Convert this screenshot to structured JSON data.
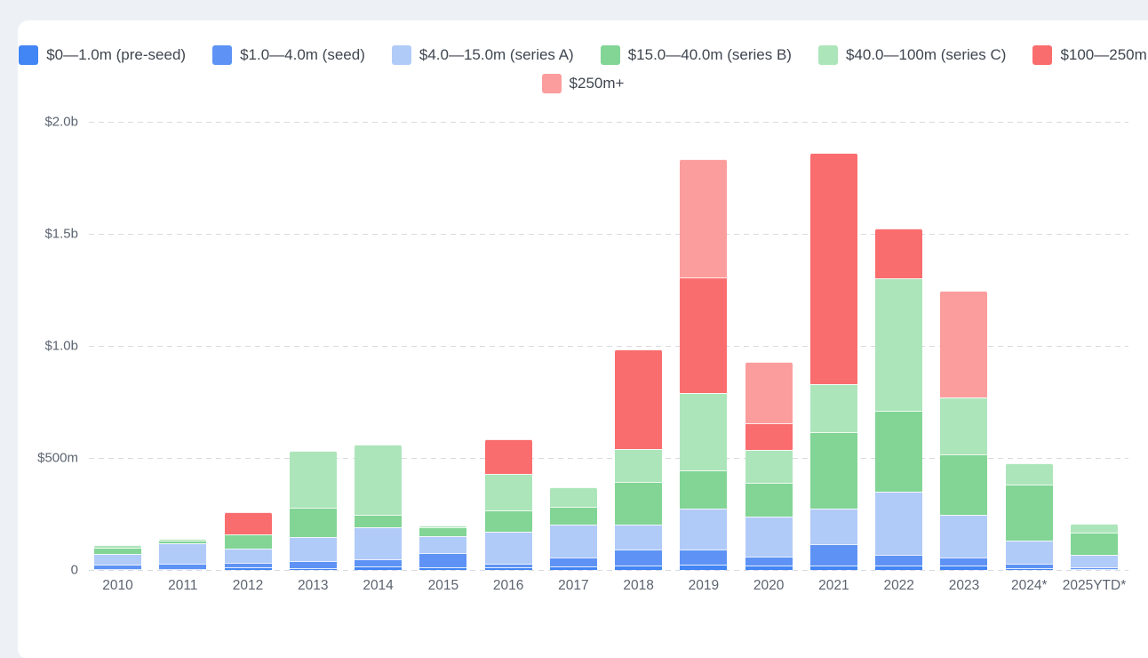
{
  "chart_data": {
    "type": "stacked-bar",
    "title": "",
    "unit": "USD millions",
    "categories": [
      "2010",
      "2011",
      "2012",
      "2013",
      "2014",
      "2015",
      "2016",
      "2017",
      "2018",
      "2019",
      "2020",
      "2021",
      "2022",
      "2023",
      "2024*",
      "2025YTD*"
    ],
    "series": [
      {
        "name": "$0—1.0m (pre-seed)",
        "color": "#4285f4",
        "values": [
          5,
          6,
          12,
          8,
          16,
          12,
          10,
          16,
          20,
          24,
          20,
          20,
          20,
          20,
          8,
          5
        ]
      },
      {
        "name": "$1.0—4.0m (seed)",
        "color": "#5e93f5",
        "values": [
          20,
          20,
          20,
          32,
          31,
          63,
          16,
          40,
          71,
          67,
          40,
          95,
          48,
          36,
          20,
          8
        ]
      },
      {
        "name": "$4.0—15.0m (series A)",
        "color": "#b1cbf8",
        "values": [
          45,
          95,
          63,
          106,
          142,
          75,
          143,
          147,
          111,
          183,
          179,
          159,
          282,
          190,
          102,
          55
        ]
      },
      {
        "name": "$15.0—40.0m (series B)",
        "color": "#82d595",
        "values": [
          30,
          12,
          62,
          130,
          59,
          42,
          95,
          79,
          190,
          171,
          151,
          341,
          361,
          270,
          252,
          98
        ]
      },
      {
        "name": "$40.0—100m (series C)",
        "color": "#ade5ba",
        "values": [
          10,
          5,
          0,
          256,
          311,
          5,
          163,
          87,
          147,
          345,
          147,
          214,
          591,
          254,
          95,
          39
        ]
      },
      {
        "name": "$100—250m",
        "color": "#fa6d6e",
        "values": [
          0,
          0,
          103,
          0,
          0,
          0,
          158,
          0,
          444,
          516,
          119,
          1032,
          222,
          0,
          0,
          0
        ]
      },
      {
        "name": "$250m+",
        "color": "#fb9d9d",
        "values": [
          0,
          0,
          0,
          0,
          0,
          0,
          0,
          0,
          0,
          528,
          274,
          0,
          0,
          476,
          0,
          0
        ]
      }
    ],
    "yticks": [
      {
        "label": "0",
        "value": 0
      },
      {
        "label": "$500m",
        "value": 500
      },
      {
        "label": "$1.0b",
        "value": 1000
      },
      {
        "label": "$1.5b",
        "value": 1500
      },
      {
        "label": "$2.0b",
        "value": 2000
      }
    ],
    "ymax": 2000,
    "grid": "horizontal-dashed",
    "legend_position": "top"
  }
}
